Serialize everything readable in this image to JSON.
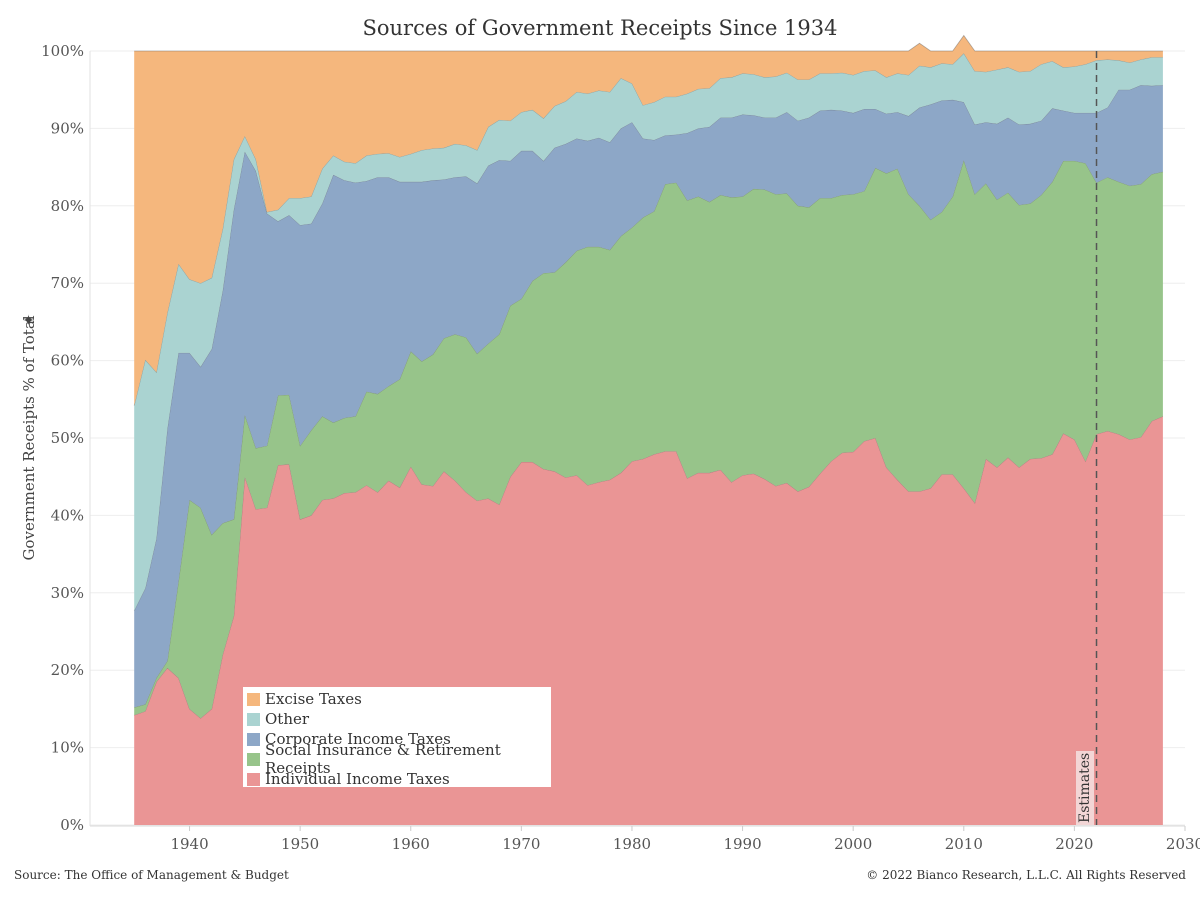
{
  "header": {
    "title": "Sources of Government Receipts Since 1934"
  },
  "footer": {
    "source": "Source: The Office of Management & Budget",
    "copyright": "© 2022 Bianco Research, L.L.C. All Rights Reserved"
  },
  "annotation": {
    "estimates_label": "Estimates",
    "estimates_year": 2022
  },
  "legend": [
    {
      "label": "Excise Taxes",
      "color": "#F5B77D"
    },
    {
      "label": "Other",
      "color": "#AAD3D1"
    },
    {
      "label": "Corporate Income Taxes",
      "color": "#8DA7C7"
    },
    {
      "label": "Social Insurance & Retirement Receipts",
      "color": "#97C48A"
    },
    {
      "label": "Individual Income Taxes",
      "color": "#EA9595"
    }
  ],
  "chart_data": {
    "type": "area",
    "stacked": true,
    "title": "Sources of Government Receipts Since 1934",
    "ylabel": "Government Receipts % of Total",
    "xlabel": "",
    "xlim": [
      1931,
      2030
    ],
    "ylim": [
      0,
      100
    ],
    "x_ticks": [
      1940,
      1950,
      1960,
      1970,
      1980,
      1990,
      2000,
      2010,
      2020,
      2030
    ],
    "y_ticks": [
      "0%",
      "10%",
      "20%",
      "30%",
      "40%",
      "50%",
      "60%",
      "70%",
      "80%",
      "90%",
      "100%"
    ],
    "y_tick_values": [
      0,
      10,
      20,
      30,
      40,
      50,
      60,
      70,
      80,
      90,
      100
    ],
    "grid": true,
    "legend_position": "bottom-left",
    "x": [
      1935,
      1936,
      1937,
      1938,
      1939,
      1940,
      1941,
      1942,
      1943,
      1944,
      1945,
      1946,
      1947,
      1948,
      1949,
      1950,
      1951,
      1952,
      1953,
      1954,
      1955,
      1956,
      1957,
      1958,
      1959,
      1960,
      1961,
      1962,
      1963,
      1964,
      1965,
      1966,
      1967,
      1968,
      1969,
      1970,
      1971,
      1972,
      1973,
      1974,
      1975,
      1976,
      1977,
      1978,
      1979,
      1980,
      1981,
      1982,
      1983,
      1984,
      1985,
      1986,
      1987,
      1988,
      1989,
      1990,
      1991,
      1992,
      1993,
      1994,
      1995,
      1996,
      1997,
      1998,
      1999,
      2000,
      2001,
      2002,
      2003,
      2004,
      2005,
      2006,
      2007,
      2008,
      2009,
      2010,
      2011,
      2012,
      2013,
      2014,
      2015,
      2016,
      2017,
      2018,
      2019,
      2020,
      2021,
      2022,
      2023,
      2024,
      2025,
      2026,
      2027,
      2028
    ],
    "series": [
      {
        "name": "Individual Income Taxes",
        "values": [
          14.2,
          14.7,
          18.5,
          20.3,
          19.0,
          15.0,
          13.8,
          15.0,
          22.0,
          27.0,
          45.0,
          40.8,
          41.0,
          46.5,
          46.6,
          39.5,
          40.0,
          42.0,
          42.2,
          42.9,
          43.0,
          43.9,
          43.0,
          44.5,
          43.6,
          46.3,
          44.0,
          43.8,
          45.7,
          44.5,
          43.0,
          41.9,
          42.2,
          41.4,
          45.0,
          46.9,
          46.9,
          46.0,
          45.7,
          44.9,
          45.2,
          43.9,
          44.3,
          44.6,
          45.5,
          47.0,
          47.3,
          47.9,
          48.3,
          48.3,
          44.8,
          45.5,
          45.5,
          45.9,
          44.3,
          45.2,
          45.4,
          44.7,
          43.8,
          44.2,
          43.1,
          43.7,
          45.4,
          47.0,
          48.1,
          48.2,
          49.6,
          50.0,
          46.2,
          44.6,
          43.1,
          43.1,
          43.5,
          45.3,
          45.3,
          43.5,
          41.6,
          47.3,
          46.2,
          47.5,
          46.2,
          47.3,
          47.4,
          47.9,
          50.6,
          49.8,
          47.0,
          50.5,
          50.9,
          50.5,
          49.8,
          50.1,
          52.2,
          52.8
        ]
      },
      {
        "name": "Social Insurance & Retirement Receipts",
        "values": [
          1.0,
          0.9,
          0.5,
          0.9,
          12.5,
          27.0,
          27.2,
          22.5,
          17.0,
          12.5,
          8.0,
          7.9,
          8.0,
          9.0,
          9.0,
          9.5,
          11.0,
          10.8,
          9.8,
          9.7,
          9.8,
          12.1,
          12.7,
          12.2,
          14.0,
          14.9,
          15.9,
          17.0,
          17.2,
          18.9,
          20.0,
          19.0,
          20.0,
          22.0,
          22.1,
          21.1,
          23.4,
          25.3,
          25.7,
          27.8,
          29.0,
          30.8,
          30.4,
          29.7,
          30.6,
          30.2,
          31.2,
          31.4,
          34.5,
          34.7,
          35.9,
          35.7,
          35.0,
          35.5,
          36.8,
          36.0,
          36.8,
          37.4,
          37.7,
          37.4,
          36.9,
          36.1,
          35.6,
          34.0,
          33.3,
          33.3,
          32.3,
          34.9,
          38.0,
          40.2,
          38.4,
          36.9,
          34.7,
          33.9,
          35.9,
          42.4,
          39.9,
          35.6,
          34.6,
          34.2,
          33.9,
          33.0,
          34.0,
          35.2,
          35.2,
          36.0,
          38.5,
          32.5,
          32.8,
          32.6,
          32.8,
          32.7,
          31.9,
          31.6
        ]
      },
      {
        "name": "Corporate Income Taxes",
        "values": [
          12.5,
          15.0,
          18.0,
          30.0,
          29.5,
          19.0,
          18.2,
          24.0,
          30.0,
          40.0,
          34.0,
          35.8,
          30.0,
          22.5,
          23.2,
          28.5,
          26.7,
          27.5,
          32.0,
          30.7,
          30.2,
          27.2,
          28.0,
          27.0,
          25.5,
          21.9,
          23.2,
          22.5,
          20.5,
          20.3,
          20.8,
          22.0,
          23.0,
          22.5,
          18.7,
          19.1,
          16.8,
          14.5,
          16.1,
          15.3,
          14.5,
          13.7,
          14.1,
          13.9,
          13.9,
          13.6,
          10.2,
          9.2,
          6.3,
          6.2,
          8.7,
          8.8,
          9.7,
          10.0,
          10.3,
          10.6,
          9.5,
          9.3,
          9.9,
          10.5,
          11.0,
          11.6,
          11.3,
          11.4,
          10.9,
          10.5,
          10.6,
          7.6,
          7.7,
          7.3,
          10.1,
          12.7,
          14.9,
          14.4,
          12.5,
          7.5,
          9.0,
          7.9,
          9.8,
          9.7,
          10.4,
          10.3,
          9.6,
          9.5,
          6.5,
          6.2,
          6.5,
          9.0,
          9.0,
          11.9,
          12.4,
          12.8,
          11.4,
          11.2
        ]
      },
      {
        "name": "Other",
        "values": [
          26.5,
          29.5,
          21.5,
          15.0,
          11.5,
          9.5,
          10.8,
          9.2,
          8.0,
          6.5,
          2.0,
          1.5,
          0.2,
          1.5,
          2.2,
          3.5,
          3.5,
          4.5,
          2.5,
          2.4,
          2.5,
          3.3,
          3.0,
          3.1,
          3.2,
          3.6,
          4.1,
          4.1,
          4.1,
          4.3,
          4.0,
          4.3,
          5.0,
          5.2,
          5.2,
          5.0,
          5.3,
          5.5,
          5.4,
          5.5,
          6.0,
          6.1,
          6.1,
          6.5,
          6.5,
          5.0,
          4.3,
          4.9,
          5.0,
          4.9,
          5.1,
          5.1,
          5.0,
          5.1,
          5.2,
          5.3,
          5.3,
          5.2,
          5.3,
          5.1,
          5.3,
          4.9,
          4.8,
          4.7,
          4.9,
          4.9,
          4.9,
          5.0,
          4.7,
          5.0,
          5.3,
          5.4,
          4.8,
          4.8,
          4.6,
          6.3,
          6.9,
          6.5,
          7.0,
          6.5,
          6.8,
          6.8,
          7.3,
          6.1,
          5.6,
          6.0,
          6.3,
          6.8,
          6.2,
          3.8,
          3.5,
          3.3,
          3.7,
          3.6
        ]
      },
      {
        "name": "Excise Taxes",
        "values": [
          45.8,
          39.9,
          41.5,
          33.8,
          27.5,
          29.5,
          30.0,
          29.3,
          23.0,
          14.0,
          11.0,
          14.0,
          20.8,
          20.5,
          19.0,
          19.0,
          18.8,
          15.2,
          13.5,
          14.3,
          14.5,
          13.5,
          13.3,
          13.2,
          13.7,
          13.3,
          12.8,
          12.6,
          12.5,
          12.0,
          12.2,
          12.8,
          9.8,
          8.9,
          9.0,
          7.9,
          7.6,
          8.7,
          7.1,
          6.5,
          5.3,
          5.5,
          5.1,
          5.3,
          3.5,
          4.2,
          7.0,
          6.6,
          5.9,
          5.9,
          5.5,
          4.9,
          4.8,
          3.5,
          3.4,
          2.9,
          3.0,
          3.4,
          3.3,
          2.8,
          3.7,
          3.7,
          2.9,
          2.9,
          2.8,
          3.1,
          2.6,
          2.5,
          3.4,
          2.9,
          3.1,
          2.9,
          2.1,
          1.6,
          1.7,
          2.3,
          2.6,
          2.7,
          2.4,
          2.1,
          2.7,
          2.6,
          1.7,
          1.3,
          2.1,
          2.0,
          1.7,
          1.2,
          1.1,
          1.2,
          1.5,
          1.1,
          0.8,
          0.8
        ]
      }
    ]
  }
}
